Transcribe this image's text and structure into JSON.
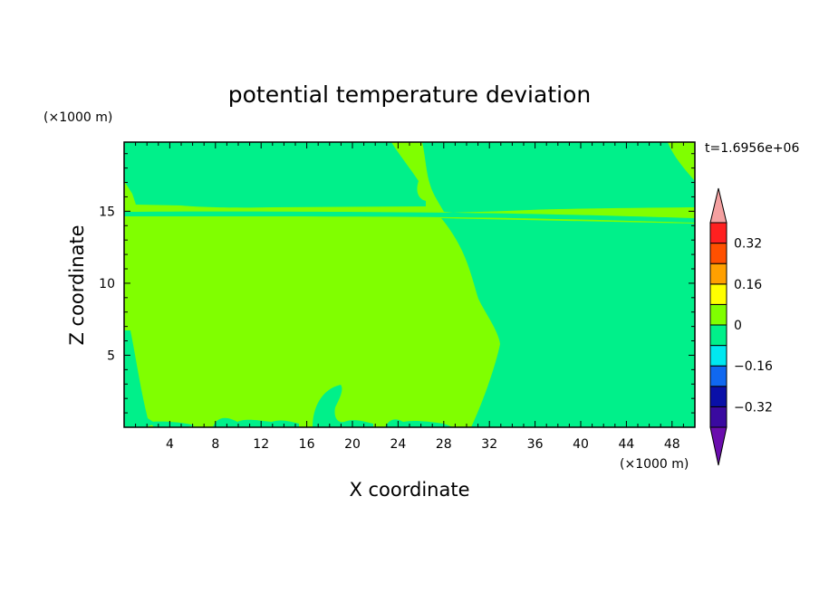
{
  "chart_data": {
    "type": "heatmap",
    "title": "potential temperature deviation",
    "xlabel": "X coordinate",
    "ylabel": "Z coordinate",
    "x_unit": "(×1000 m)",
    "y_unit": "(×1000 m)",
    "time_label": "t=1.6956e+06",
    "xlim": [
      0,
      50
    ],
    "ylim": [
      0,
      19.8
    ],
    "x_ticks": [
      4,
      8,
      12,
      16,
      20,
      24,
      28,
      32,
      36,
      40,
      44,
      48
    ],
    "y_ticks": [
      5,
      10,
      15
    ],
    "colorbar": {
      "levels": [
        -0.4,
        -0.32,
        -0.24,
        -0.16,
        -0.08,
        0,
        0.08,
        0.16,
        0.24,
        0.32,
        0.4
      ],
      "colors": [
        "#6a0dad",
        "#3a0aa0",
        "#0a10a8",
        "#1068f0",
        "#00e8f0",
        "#00f08a",
        "#80ff00",
        "#ffff00",
        "#ffa000",
        "#ff5000",
        "#ff2020",
        "#f4a0a0"
      ],
      "tick_labels": [
        "0.32",
        "0.16",
        "0",
        "-0.16",
        "-0.32"
      ]
    },
    "regions": {
      "background_band": "0 to 0.08",
      "cool_band": "-0.08 to 0"
    }
  }
}
